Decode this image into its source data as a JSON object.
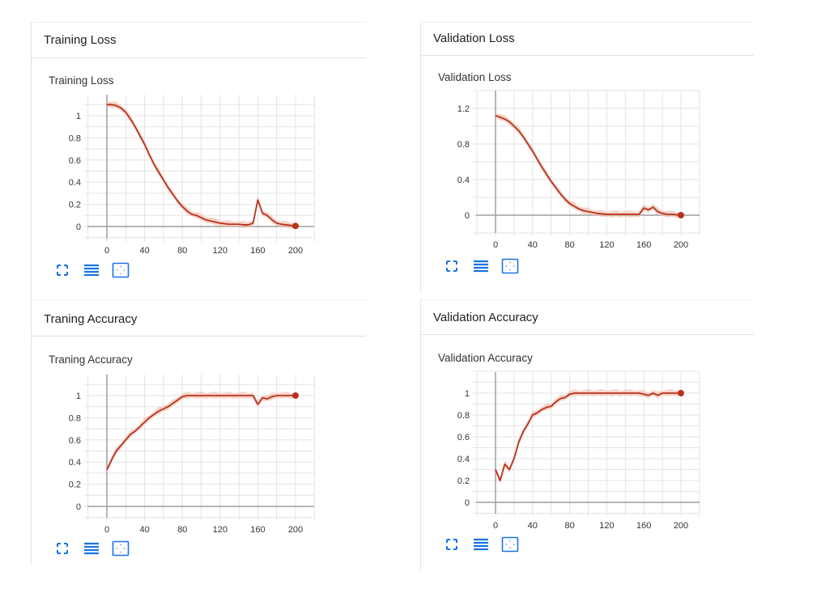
{
  "colors": {
    "line": "#b8321a",
    "band": "#f1b9ab",
    "grid": "#e3e3e3",
    "axis": "#9e9e9e",
    "icon": "#1a73e8"
  },
  "cards": [
    {
      "header": "Training Loss",
      "title": "Training Loss"
    },
    {
      "header": "Validation Loss",
      "title": "Validation Loss"
    },
    {
      "header": "Traning Accuracy",
      "title": "Traning Accuracy"
    },
    {
      "header": "Validation Accuracy",
      "title": "Validation Accuracy"
    }
  ],
  "icons": [
    "fit-to-screen-icon",
    "toggle-log-scale-icon",
    "fit-domain-icon"
  ],
  "chart_data": [
    {
      "type": "line",
      "title": "Training Loss",
      "xlim": [
        -20,
        220
      ],
      "xticks": [
        0,
        40,
        80,
        120,
        160,
        200
      ],
      "ylim": [
        -0.1,
        1.2
      ],
      "yticks": [
        0,
        0.2,
        0.4,
        0.6,
        0.8,
        1
      ],
      "grid": true,
      "x_step": 5,
      "values": [
        1.1,
        1.1,
        1.09,
        1.07,
        1.03,
        0.97,
        0.9,
        0.82,
        0.74,
        0.65,
        0.56,
        0.49,
        0.42,
        0.35,
        0.29,
        0.23,
        0.18,
        0.14,
        0.11,
        0.1,
        0.08,
        0.06,
        0.05,
        0.04,
        0.03,
        0.025,
        0.02,
        0.02,
        0.02,
        0.015,
        0.015,
        0.03,
        0.24,
        0.12,
        0.1,
        0.06,
        0.03,
        0.02,
        0.015,
        0.01,
        0.005
      ]
    },
    {
      "type": "line",
      "title": "Validation Loss",
      "xlim": [
        -20,
        220
      ],
      "xticks": [
        0,
        40,
        80,
        120,
        160,
        200
      ],
      "ylim": [
        -0.2,
        1.4
      ],
      "yticks": [
        0,
        0.4,
        0.8,
        1.2
      ],
      "grid": true,
      "x_step": 5,
      "values": [
        1.12,
        1.1,
        1.08,
        1.05,
        1.0,
        0.95,
        0.88,
        0.8,
        0.72,
        0.63,
        0.54,
        0.46,
        0.38,
        0.31,
        0.24,
        0.18,
        0.13,
        0.1,
        0.07,
        0.05,
        0.04,
        0.03,
        0.02,
        0.015,
        0.01,
        0.01,
        0.01,
        0.01,
        0.01,
        0.01,
        0.01,
        0.01,
        0.08,
        0.06,
        0.09,
        0.04,
        0.02,
        0.01,
        0.01,
        0.005,
        0.0
      ]
    },
    {
      "type": "line",
      "title": "Traning Accuracy",
      "xlim": [
        -20,
        220
      ],
      "xticks": [
        0,
        40,
        80,
        120,
        160,
        200
      ],
      "ylim": [
        -0.1,
        1.2
      ],
      "yticks": [
        0,
        0.2,
        0.4,
        0.6,
        0.8,
        1
      ],
      "grid": true,
      "x_step": 5,
      "values": [
        0.33,
        0.42,
        0.5,
        0.55,
        0.6,
        0.65,
        0.68,
        0.72,
        0.76,
        0.8,
        0.83,
        0.86,
        0.88,
        0.9,
        0.93,
        0.96,
        0.99,
        1,
        1,
        1,
        1,
        1,
        1,
        1,
        1,
        1,
        1,
        1,
        1,
        1,
        1,
        1,
        0.92,
        0.98,
        0.97,
        0.99,
        1,
        1,
        1,
        1,
        1
      ]
    },
    {
      "type": "line",
      "title": "Validation Accuracy",
      "xlim": [
        -20,
        220
      ],
      "xticks": [
        0,
        40,
        80,
        120,
        160,
        200
      ],
      "ylim": [
        -0.1,
        1.2
      ],
      "yticks": [
        0,
        0.2,
        0.4,
        0.6,
        0.8,
        1
      ],
      "grid": true,
      "x_step": 5,
      "values": [
        0.3,
        0.2,
        0.35,
        0.3,
        0.4,
        0.55,
        0.65,
        0.72,
        0.8,
        0.82,
        0.85,
        0.87,
        0.88,
        0.92,
        0.95,
        0.96,
        0.99,
        1,
        1,
        1,
        1,
        1,
        1,
        1,
        1,
        1,
        1,
        1,
        1,
        1,
        1,
        1,
        0.99,
        0.98,
        1,
        0.98,
        1,
        1,
        1,
        1,
        1
      ]
    }
  ]
}
